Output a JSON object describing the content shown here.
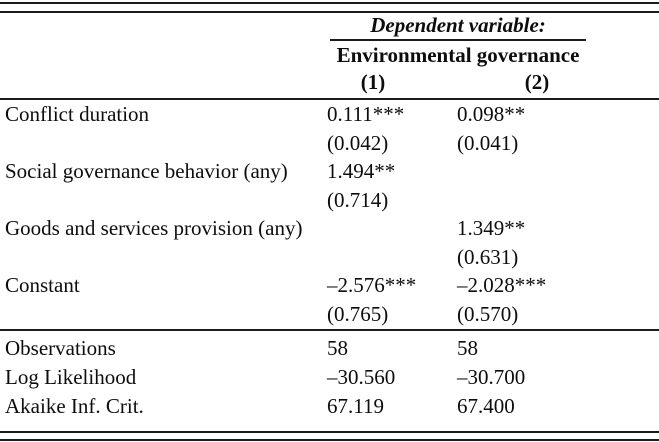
{
  "table": {
    "header": {
      "dependent_variable_label": "Dependent variable:",
      "dependent_variable_name": "Environmental governance",
      "model_headers": [
        "(1)",
        "(2)"
      ]
    },
    "rows": [
      {
        "label": "Conflict duration",
        "m1": "0.111***",
        "m2": "0.098**"
      },
      {
        "label": "",
        "m1": "(0.042)",
        "m2": "(0.041)"
      },
      {
        "label": "Social governance behavior (any)",
        "m1": "1.494**",
        "m2": ""
      },
      {
        "label": "",
        "m1": "(0.714)",
        "m2": ""
      },
      {
        "label": "Goods and services provision (any)",
        "m1": "",
        "m2": "1.349**"
      },
      {
        "label": "",
        "m1": "",
        "m2": "(0.631)"
      },
      {
        "label": "Constant",
        "m1": "–2.576***",
        "m2": "–2.028***"
      },
      {
        "label": "",
        "m1": "(0.765)",
        "m2": "(0.570)"
      }
    ],
    "summary_rows": [
      {
        "label": "Observations",
        "m1": "58",
        "m2": "58"
      },
      {
        "label": "Log Likelihood",
        "m1": "–30.560",
        "m2": "–30.700"
      },
      {
        "label": "Akaike Inf. Crit.",
        "m1": "67.119",
        "m2": "67.400"
      }
    ],
    "colors": {
      "rule": "#1c1c1c",
      "text": "#0d0d0d",
      "background": "#ffffff"
    }
  }
}
